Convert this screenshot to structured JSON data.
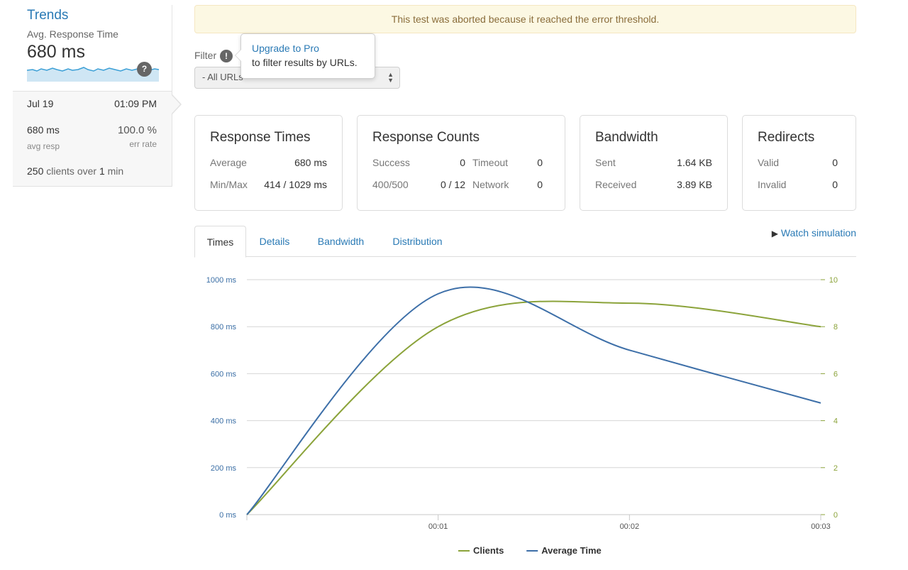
{
  "trends": {
    "title": "Trends",
    "subtitle": "Avg. Response Time",
    "value": "680 ms",
    "help": "?",
    "date": "Jul 19",
    "time": "01:09 PM",
    "avg_value": "680 ms",
    "avg_label": "avg resp",
    "err_value": "100.0 %",
    "err_label": "err rate",
    "clients_count": "250",
    "clients_mid": " clients over ",
    "clients_dur": "1",
    "clients_unit": " min"
  },
  "alert": "This test was aborted because it reached the error threshold.",
  "filter": {
    "label": "Filter",
    "info": "!",
    "selected": "- All URLs"
  },
  "tooltip": {
    "link": "Upgrade to Pro",
    "text": "to filter results by URLs."
  },
  "cards": {
    "response_times": {
      "title": "Response Times",
      "average_label": "Average",
      "average_value": "680 ms",
      "minmax_label": "Min/Max",
      "minmax_value": "414 / 1029 ms"
    },
    "response_counts": {
      "title": "Response Counts",
      "success_label": "Success",
      "success_value": "0",
      "timeout_label": "Timeout",
      "timeout_value": "0",
      "e400_label": "400/500",
      "e400_value": "0 / 12",
      "network_label": "Network",
      "network_value": "0"
    },
    "bandwidth": {
      "title": "Bandwidth",
      "sent_label": "Sent",
      "sent_value": "1.64 KB",
      "received_label": "Received",
      "received_value": "3.89 KB"
    },
    "redirects": {
      "title": "Redirects",
      "valid_label": "Valid",
      "valid_value": "0",
      "invalid_label": "Invalid",
      "invalid_value": "0"
    }
  },
  "tabs": [
    "Times",
    "Details",
    "Bandwidth",
    "Distribution"
  ],
  "watch_simulation": "Watch simulation",
  "colors": {
    "avg": "#3d6fa8",
    "clients": "#8ba33a",
    "link": "#2a7ab5"
  },
  "chart_data": {
    "type": "line",
    "x": [
      "00:00",
      "00:01",
      "00:02",
      "00:03"
    ],
    "x_ticks": [
      "00:01",
      "00:02",
      "00:03"
    ],
    "y_left_ticks": [
      "0 ms",
      "200 ms",
      "400 ms",
      "600 ms",
      "800 ms",
      "1000 ms"
    ],
    "y_left_range": [
      0,
      1000
    ],
    "y_right_ticks": [
      "0",
      "2",
      "4",
      "6",
      "8",
      "10"
    ],
    "y_right_range": [
      0,
      10
    ],
    "series": [
      {
        "name": "Clients",
        "axis": "right",
        "values": [
          0,
          8,
          9,
          8
        ]
      },
      {
        "name": "Average Time",
        "axis": "left",
        "values": [
          0,
          940,
          700,
          475
        ]
      }
    ],
    "grid": true,
    "legend": "bottom"
  }
}
